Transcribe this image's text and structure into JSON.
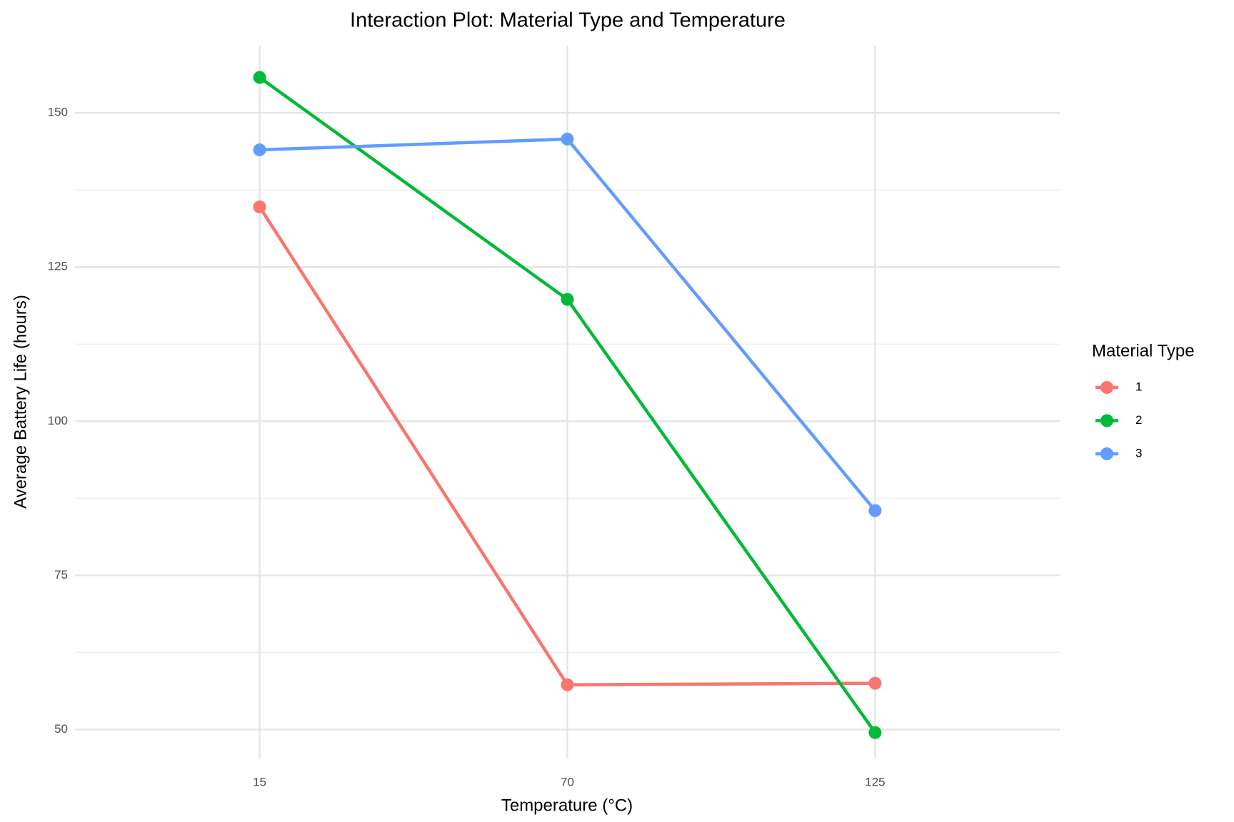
{
  "chart_data": {
    "type": "line",
    "title": "Interaction Plot: Material Type and Temperature",
    "x_label": "Temperature (°C)",
    "y_label": "Average Battery Life (hours)",
    "legend_title": "Material Type",
    "legend_position": "right",
    "grid": true,
    "categories": [
      "15",
      "70",
      "125"
    ],
    "series": [
      {
        "name": "1",
        "color": "#F8766D",
        "values": [
          134.75,
          57.25,
          57.5
        ]
      },
      {
        "name": "2",
        "color": "#00BA38",
        "values": [
          155.75,
          119.75,
          49.5
        ]
      },
      {
        "name": "3",
        "color": "#619CFF",
        "values": [
          144,
          145.75,
          85.5
        ]
      }
    ],
    "ylim": [
      45.3,
      160.9
    ],
    "yticks": [
      50,
      75,
      100,
      125,
      150
    ]
  }
}
